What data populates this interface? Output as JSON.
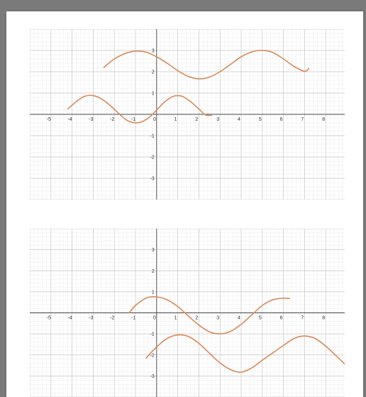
{
  "colors": {
    "curve": "#d9895a",
    "minor_grid": "#ececec",
    "major_grid": "#c6c6c6",
    "axis": "#444444",
    "page_background": "#7a7a7a",
    "paper": "#ffffff"
  },
  "chart_data": [
    {
      "type": "line",
      "title": "",
      "xlabel": "",
      "ylabel": "",
      "xlim": [
        -6,
        8.9
      ],
      "ylim": [
        -4,
        4
      ],
      "grid": true,
      "x_tick_labels": [
        "-5",
        "-4",
        "-3",
        "-2",
        "-1",
        "0",
        "1",
        "2",
        "3",
        "4",
        "5",
        "6",
        "7",
        "8"
      ],
      "y_tick_labels": [
        "-3",
        "-2",
        "-1",
        "1",
        "2",
        "3"
      ],
      "series": [
        {
          "x": [
            -2.5,
            -2.0,
            -1.5,
            -1.0,
            -0.5,
            0.0,
            0.5,
            1.0,
            1.5,
            2.0,
            2.5,
            3.0,
            3.5,
            4.0,
            4.5,
            5.0,
            5.5,
            6.0,
            6.5,
            7.0,
            7.2
          ],
          "y": [
            2.2,
            2.6,
            2.85,
            2.97,
            2.92,
            2.7,
            2.4,
            2.05,
            1.78,
            1.67,
            1.75,
            2.0,
            2.35,
            2.7,
            2.93,
            3.0,
            2.9,
            2.6,
            2.25,
            2.02,
            2.15
          ]
        },
        {
          "x": [
            -4.2,
            -3.8,
            -3.4,
            -3.0,
            -2.6,
            -2.2,
            -1.8,
            -1.4,
            -1.0,
            -0.7,
            -0.3,
            0.0,
            0.4,
            0.8,
            1.2,
            1.6,
            2.0,
            2.3,
            2.6
          ],
          "y": [
            0.25,
            0.6,
            0.85,
            0.88,
            0.72,
            0.42,
            0.05,
            -0.28,
            -0.4,
            -0.35,
            -0.1,
            0.2,
            0.6,
            0.85,
            0.85,
            0.6,
            0.25,
            -0.02,
            -0.05
          ]
        }
      ]
    },
    {
      "type": "line",
      "title": "",
      "xlabel": "",
      "ylabel": "",
      "xlim": [
        -6,
        8.9
      ],
      "ylim": [
        -4,
        4
      ],
      "grid": true,
      "x_tick_labels": [
        "-5",
        "-4",
        "-3",
        "-2",
        "-1",
        "0",
        "1",
        "2",
        "3",
        "4",
        "5",
        "6",
        "7",
        "8"
      ],
      "y_tick_labels": [
        "-3",
        "-2",
        "-1",
        "1",
        "2",
        "3"
      ],
      "series": [
        {
          "x": [
            -1.3,
            -1.0,
            -0.5,
            0.0,
            0.5,
            1.0,
            1.5,
            2.0,
            2.5,
            3.0,
            3.5,
            4.0,
            4.5,
            5.0,
            5.5,
            6.0,
            6.3
          ],
          "y": [
            0.0,
            0.35,
            0.7,
            0.76,
            0.62,
            0.3,
            -0.15,
            -0.58,
            -0.9,
            -1.0,
            -0.88,
            -0.55,
            -0.1,
            0.35,
            0.62,
            0.7,
            0.68
          ]
        },
        {
          "x": [
            -0.5,
            0.0,
            0.5,
            1.0,
            1.5,
            2.0,
            2.5,
            3.0,
            3.5,
            4.0,
            4.5,
            5.0,
            5.5,
            6.0,
            6.5,
            7.0,
            7.5,
            8.0,
            8.5,
            9.0
          ],
          "y": [
            -2.15,
            -1.62,
            -1.22,
            -1.05,
            -1.12,
            -1.45,
            -1.92,
            -2.38,
            -2.7,
            -2.82,
            -2.62,
            -2.25,
            -1.9,
            -1.55,
            -1.22,
            -1.1,
            -1.22,
            -1.58,
            -2.05,
            -2.52
          ]
        }
      ]
    }
  ]
}
